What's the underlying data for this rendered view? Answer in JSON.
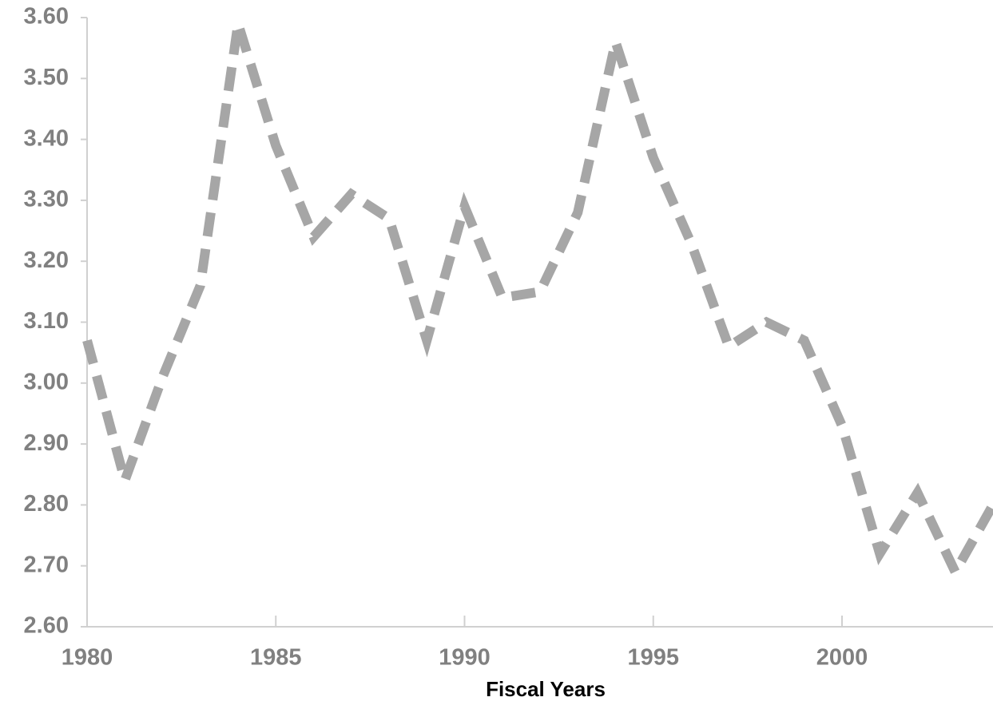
{
  "chart_data": {
    "type": "line",
    "x_label": "Fiscal Years",
    "x": [
      1980,
      1981,
      1982,
      1983,
      1984,
      1985,
      1986,
      1987,
      1988,
      1989,
      1990,
      1991,
      1992,
      1993,
      1994,
      1995,
      1996,
      1997,
      1998,
      1999,
      2000,
      2001,
      2002,
      2003,
      2004
    ],
    "series": [
      {
        "color": "#a6a6a6",
        "values": [
          3.07,
          2.84,
          3.01,
          3.16,
          3.59,
          3.39,
          3.24,
          3.31,
          3.27,
          3.07,
          3.29,
          3.14,
          3.15,
          3.28,
          3.56,
          3.37,
          3.23,
          3.06,
          3.1,
          3.07,
          2.93,
          2.72,
          2.82,
          2.69,
          2.8
        ]
      }
    ],
    "xlim": [
      1980,
      2004
    ],
    "xticks": [
      1980,
      1985,
      1990,
      1995,
      2000
    ],
    "ylim": [
      2.6,
      3.6
    ],
    "yticks": [
      {
        "value": 2.6,
        "label": "2.60"
      },
      {
        "value": 2.7,
        "label": "2.70"
      },
      {
        "value": 2.8,
        "label": "2.80"
      },
      {
        "value": 2.9,
        "label": "2.90"
      },
      {
        "value": 3.0,
        "label": "3.00"
      },
      {
        "value": 3.1,
        "label": "3.10"
      },
      {
        "value": 3.2,
        "label": "3.20"
      },
      {
        "value": 3.3,
        "label": "3.30"
      },
      {
        "value": 3.4,
        "label": "3.40"
      },
      {
        "value": 3.5,
        "label": "3.50"
      },
      {
        "value": 3.6,
        "label": "3.60"
      }
    ],
    "line_style": "dashed"
  }
}
